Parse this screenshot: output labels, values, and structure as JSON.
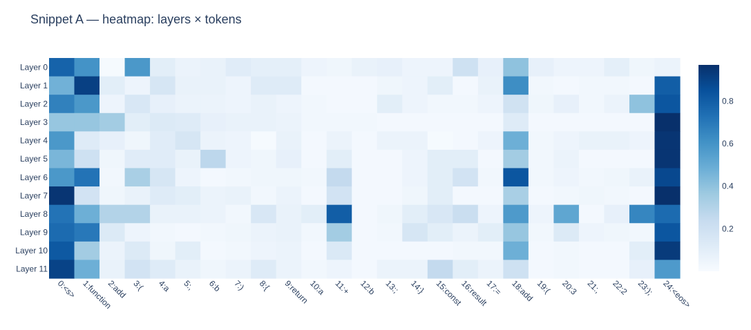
{
  "chart_data": {
    "type": "heatmap",
    "title": "Snippet A — heatmap: layers × tokens",
    "xlabel": "",
    "ylabel": "",
    "x": [
      "0:<s>",
      "1:function",
      "2:add",
      "3:(",
      "4:a",
      "5:,",
      "6:b",
      "7:)",
      "8:{",
      "9:return",
      "10:a",
      "11:+",
      "12:b",
      "13:;",
      "14:}",
      "15:const",
      "16:result",
      "17:=",
      "18:add",
      "19:(",
      "20:3",
      "21:,",
      "22:2",
      "23:);",
      "24:<eos>"
    ],
    "y": [
      "Layer 0",
      "Layer 1",
      "Layer 2",
      "Layer 3",
      "Layer 4",
      "Layer 5",
      "Layer 6",
      "Layer 7",
      "Layer 8",
      "Layer 9",
      "Layer 10",
      "Layer 11"
    ],
    "z": [
      [
        0.78,
        0.6,
        0.01,
        0.58,
        0.1,
        0.06,
        0.07,
        0.11,
        0.09,
        0.09,
        0.05,
        0.04,
        0.07,
        0.08,
        0.05,
        0.05,
        0.2,
        0.08,
        0.4,
        0.08,
        0.05,
        0.05,
        0.09,
        0.04,
        0.06
      ],
      [
        0.47,
        0.91,
        0.1,
        0.05,
        0.16,
        0.07,
        0.07,
        0.05,
        0.12,
        0.12,
        0.02,
        0.02,
        0.02,
        0.04,
        0.05,
        0.1,
        0.02,
        0.07,
        0.62,
        0.03,
        0.02,
        0.03,
        0.03,
        0.02,
        0.8
      ],
      [
        0.67,
        0.58,
        0.05,
        0.15,
        0.08,
        0.06,
        0.06,
        0.05,
        0.07,
        0.05,
        0.03,
        0.02,
        0.02,
        0.1,
        0.05,
        0.03,
        0.03,
        0.05,
        0.19,
        0.04,
        0.08,
        0.03,
        0.06,
        0.4,
        0.83
      ],
      [
        0.38,
        0.38,
        0.35,
        0.1,
        0.13,
        0.12,
        0.08,
        0.07,
        0.07,
        0.06,
        0.03,
        0.03,
        0.03,
        0.02,
        0.02,
        0.02,
        0.02,
        0.02,
        0.12,
        0.02,
        0.02,
        0.02,
        0.02,
        0.02,
        0.97
      ],
      [
        0.58,
        0.12,
        0.08,
        0.04,
        0.11,
        0.16,
        0.06,
        0.05,
        0.01,
        0.07,
        0.02,
        0.06,
        0.02,
        0.06,
        0.06,
        0.01,
        0.02,
        0.05,
        0.48,
        0.03,
        0.05,
        0.07,
        0.07,
        0.05,
        0.95
      ],
      [
        0.45,
        0.2,
        0.04,
        0.11,
        0.11,
        0.07,
        0.27,
        0.05,
        0.04,
        0.08,
        0.02,
        0.1,
        0.02,
        0.02,
        0.05,
        0.1,
        0.1,
        0.02,
        0.35,
        0.03,
        0.06,
        0.02,
        0.02,
        0.02,
        0.95
      ],
      [
        0.58,
        0.72,
        0.03,
        0.33,
        0.16,
        0.05,
        0.02,
        0.03,
        0.04,
        0.04,
        0.03,
        0.25,
        0.02,
        0.02,
        0.05,
        0.1,
        0.18,
        0.03,
        0.83,
        0.03,
        0.05,
        0.03,
        0.04,
        0.07,
        0.88
      ],
      [
        0.95,
        0.18,
        0.04,
        0.07,
        0.12,
        0.1,
        0.06,
        0.07,
        0.03,
        0.06,
        0.02,
        0.18,
        0.02,
        0.02,
        0.04,
        0.1,
        0.02,
        0.02,
        0.33,
        0.02,
        0.03,
        0.04,
        0.03,
        0.02,
        0.97
      ],
      [
        0.72,
        0.48,
        0.3,
        0.3,
        0.07,
        0.07,
        0.06,
        0.03,
        0.15,
        0.07,
        0.1,
        0.8,
        0.02,
        0.04,
        0.1,
        0.15,
        0.22,
        0.05,
        0.57,
        0.05,
        0.52,
        0.02,
        0.08,
        0.65,
        0.75
      ],
      [
        0.75,
        0.7,
        0.13,
        0.05,
        0.03,
        0.02,
        0.03,
        0.04,
        0.06,
        0.07,
        0.03,
        0.35,
        0.02,
        0.03,
        0.16,
        0.1,
        0.06,
        0.1,
        0.38,
        0.03,
        0.13,
        0.05,
        0.04,
        0.03,
        0.83
      ],
      [
        0.82,
        0.35,
        0.06,
        0.13,
        0.04,
        0.1,
        0.02,
        0.03,
        0.05,
        0.06,
        0.02,
        0.14,
        0.02,
        0.02,
        0.02,
        0.02,
        0.03,
        0.03,
        0.48,
        0.02,
        0.03,
        0.02,
        0.02,
        0.1,
        0.93
      ],
      [
        0.9,
        0.48,
        0.07,
        0.18,
        0.12,
        0.07,
        0.04,
        0.06,
        0.12,
        0.06,
        0.03,
        0.05,
        0.02,
        0.06,
        0.06,
        0.25,
        0.1,
        0.06,
        0.2,
        0.02,
        0.03,
        0.02,
        0.02,
        0.08,
        0.57
      ]
    ],
    "zrange": [
      0,
      0.97
    ],
    "colorbar_ticks": [
      0.2,
      0.4,
      0.6,
      0.8
    ],
    "colorbar_labels": [
      "0.2",
      "0.4",
      "0.6",
      "0.8"
    ],
    "colorscale": [
      [
        0.0,
        "#f7fbff"
      ],
      [
        0.125,
        "#deebf7"
      ],
      [
        0.25,
        "#c6dbef"
      ],
      [
        0.375,
        "#9ecae1"
      ],
      [
        0.5,
        "#6baed6"
      ],
      [
        0.625,
        "#4292c6"
      ],
      [
        0.75,
        "#2171b5"
      ],
      [
        0.875,
        "#08519c"
      ],
      [
        1.0,
        "#08306b"
      ]
    ],
    "text_color": "#2a3f5f",
    "background": "#ffffff",
    "tick_angle": 45
  }
}
